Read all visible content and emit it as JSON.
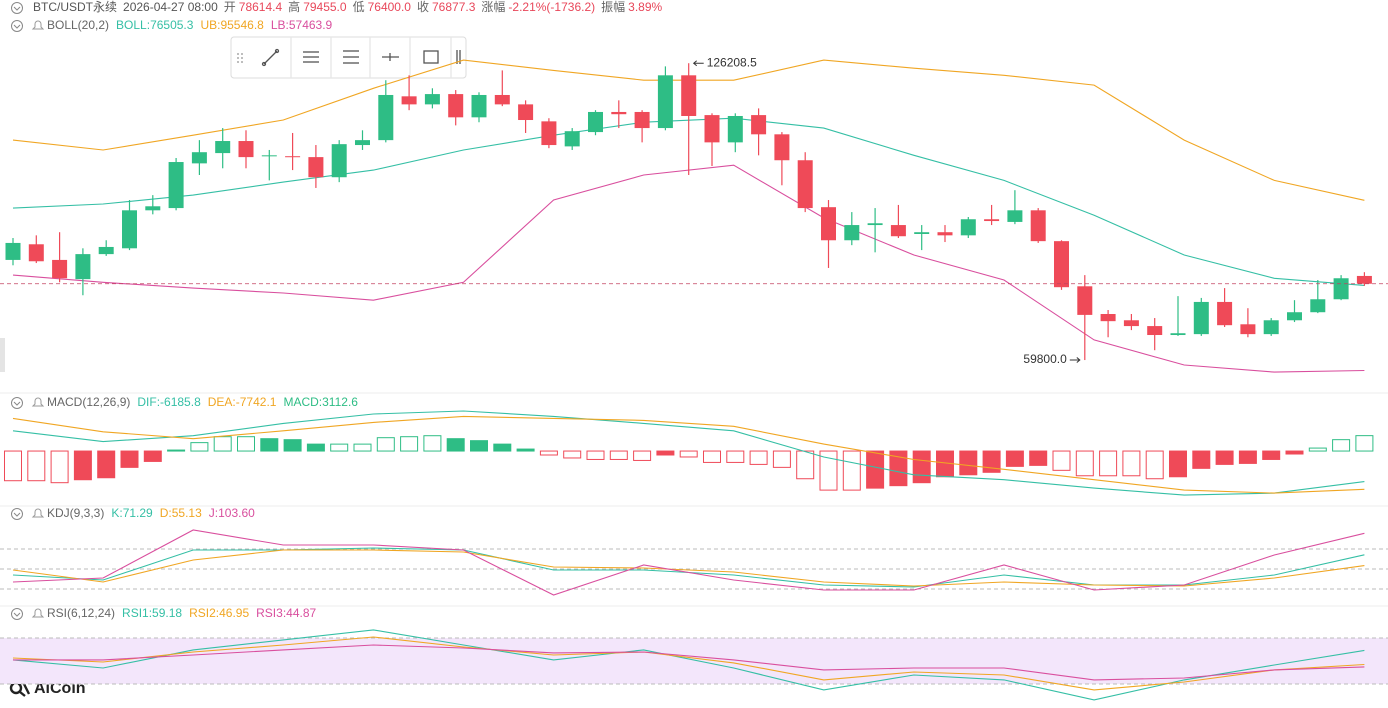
{
  "header": {
    "symbol": "BTC/USDT永续",
    "time": "2026-04-27 08:00",
    "fields": [
      {
        "label": "开",
        "value": "78614.4"
      },
      {
        "label": "高",
        "value": "79455.0"
      },
      {
        "label": "低",
        "value": "76400.0"
      },
      {
        "label": "收",
        "value": "76877.3"
      },
      {
        "label": "涨幅",
        "value": "-2.21%(-1736.2)"
      },
      {
        "label": "振幅",
        "value": "3.89%"
      }
    ]
  },
  "logo": "AiCoin",
  "chart_data": [
    {
      "type": "candlestick",
      "title": "BOLL(20,2)",
      "ylim": [
        53100,
        131400
      ],
      "up_color": "#2ebd85",
      "down_color": "#ef4a58",
      "open": [
        82200,
        85700,
        82200,
        77900,
        83500,
        84800,
        93300,
        93800,
        103800,
        106100,
        108800,
        105400,
        105400,
        105200,
        100700,
        107900,
        109000,
        118800,
        117000,
        119300,
        114100,
        119100,
        117000,
        113200,
        107600,
        110800,
        115300,
        115300,
        111700,
        123500,
        114600,
        108500,
        114600,
        110300,
        104500,
        94000,
        86600,
        90000,
        90000,
        88000,
        88400,
        87700,
        91300,
        90700,
        93300,
        86400,
        76300,
        70100,
        68700,
        67400,
        65400,
        65600,
        72800,
        67800,
        65600,
        68700,
        70500,
        73400,
        78614.4
      ],
      "high": [
        87100,
        87700,
        88400,
        84800,
        86600,
        95600,
        96700,
        105000,
        109000,
        111700,
        111200,
        106800,
        110600,
        107900,
        109000,
        111200,
        122400,
        123500,
        120600,
        120200,
        119700,
        124600,
        117900,
        113900,
        111700,
        115700,
        117900,
        115700,
        125500,
        126208.5,
        115000,
        115000,
        116100,
        110800,
        106300,
        95600,
        92900,
        93800,
        94500,
        90000,
        90000,
        91800,
        94500,
        97800,
        93800,
        86600,
        78800,
        71000,
        70100,
        69200,
        74100,
        73700,
        75900,
        71400,
        69200,
        73200,
        77700,
        78800,
        79455.0
      ],
      "low": [
        81000,
        81500,
        77200,
        74300,
        83100,
        84400,
        92400,
        93300,
        101200,
        102700,
        102700,
        100000,
        102300,
        98300,
        99600,
        106800,
        108500,
        115700,
        116100,
        112300,
        113000,
        116600,
        110600,
        107200,
        106800,
        110100,
        111700,
        108500,
        111200,
        101200,
        103200,
        106300,
        105600,
        98900,
        92900,
        80400,
        85500,
        83900,
        87100,
        84400,
        86200,
        87100,
        90000,
        90200,
        86000,
        75500,
        59800.0,
        64900,
        66500,
        62000,
        65200,
        65200,
        67200,
        64900,
        65200,
        68300,
        70300,
        73200,
        76400.0
      ],
      "close": [
        86000,
        81900,
        78100,
        83500,
        85100,
        93300,
        94200,
        104100,
        106300,
        108800,
        105200,
        105600,
        105200,
        100700,
        108100,
        109000,
        119100,
        117000,
        119300,
        114100,
        119100,
        117000,
        113500,
        107900,
        111000,
        115300,
        114800,
        111700,
        123500,
        114400,
        108500,
        114400,
        110300,
        104500,
        93800,
        86600,
        90000,
        90400,
        87500,
        88400,
        87700,
        91300,
        90900,
        93300,
        86400,
        76100,
        69900,
        68500,
        67400,
        65400,
        65800,
        72800,
        67600,
        65600,
        68700,
        70500,
        73400,
        78100,
        76877.3
      ],
      "low_label": "59800.0",
      "series": [
        {
          "name": "BOLL:76505.3",
          "color": "#35bfa5",
          "values": [
            93800,
            94700,
            96700,
            99600,
            102300,
            106800,
            110100,
            113000,
            113900,
            111700,
            105600,
            100000,
            92200,
            83300,
            78100,
            76505.3
          ]
        },
        {
          "name": "UB:95546.8",
          "color": "#f0a623",
          "values": [
            109000,
            106800,
            110100,
            113500,
            120600,
            126900,
            124600,
            122400,
            122400,
            126900,
            125100,
            123500,
            121300,
            109000,
            100000,
            95546.8
          ]
        },
        {
          "name": "LB:57463.9",
          "color": "#d94f9e",
          "values": [
            78800,
            77200,
            75900,
            74800,
            73200,
            77200,
            95600,
            101200,
            103400,
            91600,
            83300,
            77700,
            64300,
            58700,
            57100,
            57463.9
          ]
        }
      ]
    },
    {
      "type": "macd",
      "title": "MACD(12,26,9)",
      "ylim": [
        -9900,
        8300
      ],
      "series": [
        {
          "name": "DIF:-6185.8",
          "color": "#35bfa5",
          "values": [
            4100,
            1900,
            3100,
            5600,
            7500,
            8100,
            7000,
            5600,
            4100,
            -1200,
            -4800,
            -5800,
            -7500,
            -8900,
            -8500,
            -6185.8
          ]
        },
        {
          "name": "DEA:-7742.1",
          "color": "#f0a623",
          "values": [
            6600,
            3900,
            2500,
            4100,
            5800,
            7000,
            6600,
            6200,
            5000,
            1400,
            -1700,
            -3700,
            -5800,
            -7900,
            -8500,
            -7742.1
          ]
        }
      ],
      "histogram": {
        "name": "MACD:3112.6",
        "up_color": "#2ebd85",
        "down_color": "#ef4a58",
        "values": [
          -6000,
          -6000,
          -6400,
          -5800,
          -5400,
          -3300,
          -2100,
          200,
          1700,
          2900,
          2900,
          2500,
          2300,
          1400,
          1400,
          1400,
          2700,
          2900,
          3100,
          2500,
          2100,
          1400,
          400,
          -800,
          -1400,
          -1700,
          -1700,
          -1900,
          -800,
          -1200,
          -2300,
          -2300,
          -2700,
          -3300,
          -5600,
          -7900,
          -7900,
          -7500,
          -7000,
          -6400,
          -5200,
          -4800,
          -4300,
          -3100,
          -2900,
          -3900,
          -5000,
          -5000,
          -5000,
          -5600,
          -5200,
          -3500,
          -2700,
          -2500,
          -1700,
          -600,
          600,
          2300,
          3112.6
        ]
      }
    },
    {
      "type": "line",
      "title": "KDJ(9,3,3)",
      "ylim": [
        3.5,
        116
      ],
      "levels": [
        20,
        50,
        80
      ],
      "series": [
        {
          "name": "K:71.29",
          "color": "#35bfa5",
          "values": [
            41,
            33.5,
            78.5,
            78.5,
            81.5,
            78.5,
            48.5,
            48.5,
            41,
            26,
            23,
            41,
            26,
            26,
            41,
            71.29
          ]
        },
        {
          "name": "D:55.13",
          "color": "#f0a623",
          "values": [
            48.5,
            30.5,
            63.5,
            78.5,
            78.5,
            75.5,
            53,
            51.5,
            45.5,
            30.5,
            24.5,
            30.5,
            26,
            24.5,
            36.5,
            55.13
          ]
        },
        {
          "name": "J:103.60",
          "color": "#d94f9e",
          "values": [
            30.5,
            36.5,
            108.5,
            86,
            86,
            78.5,
            11,
            56,
            33.5,
            18.5,
            18.5,
            56,
            18.5,
            26,
            71,
            103.6
          ]
        }
      ]
    },
    {
      "type": "line",
      "title": "RSI(6,12,24)",
      "ylim": [
        11.7,
        81.3
      ],
      "levels": [
        30,
        70
      ],
      "band": true,
      "series": [
        {
          "name": "RSI1:59.18",
          "color": "#35bfa5",
          "values": [
            50.9,
            43.9,
            59.6,
            68.3,
            77,
            63.9,
            50.9,
            59.6,
            43.9,
            24.8,
            37.8,
            33.5,
            16.1,
            33.5,
            46.5,
            59.18
          ]
        },
        {
          "name": "RSI2:46.95",
          "color": "#f0a623",
          "values": [
            52.6,
            49.1,
            57.8,
            63.9,
            70.9,
            62.2,
            55.2,
            57.8,
            48.3,
            33.5,
            40.4,
            37.8,
            24.8,
            31.7,
            42.2,
            46.95
          ]
        },
        {
          "name": "RSI3:44.87",
          "color": "#d94f9e",
          "values": [
            50.9,
            50.9,
            55.2,
            59.6,
            63.9,
            61.3,
            57,
            57.8,
            50.9,
            42.2,
            43.9,
            43.9,
            33.5,
            35.2,
            42.2,
            44.87
          ]
        }
      ]
    }
  ]
}
